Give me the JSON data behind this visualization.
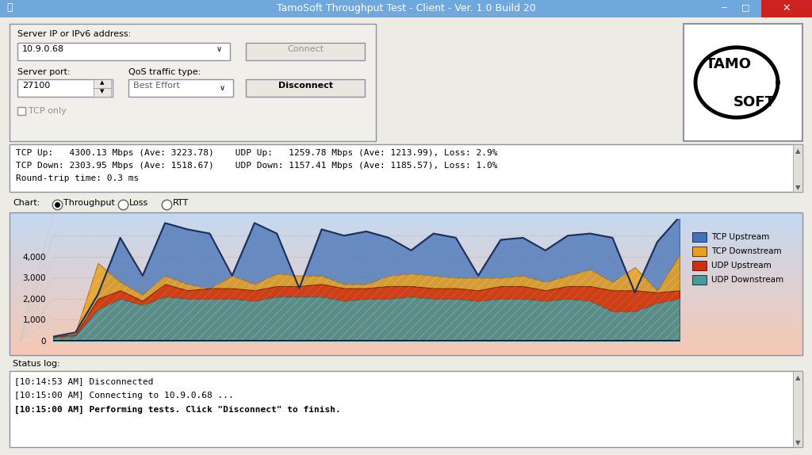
{
  "title": "TamoSoft Throughput Test - Client - Ver. 1.0 Build 20",
  "bg_outer": "#6fa8dc",
  "bg_inner": "#ecebe4",
  "white": "#ffffff",
  "border_color": "#a0a0a0",
  "titlebar_color": "#6fa8dc",
  "close_btn_color": "#cc2222",
  "server_ip": "10.9.0.68",
  "server_port": "27100",
  "qos": "Best Effort",
  "stats_line1": "TCP Up:   4300.13 Mbps (Ave: 3223.78)    UDP Up:   1259.78 Mbps (Ave: 1213.99), Loss: 2.9%",
  "stats_line2": "TCP Down: 2303.95 Mbps (Ave: 1518.67)    UDP Down: 1157.41 Mbps (Ave: 1185.57), Loss: 1.0%",
  "stats_line3": "Round-trip time: 0.3 ms",
  "status_lines": [
    "[10:14:53 AM] Disconnected",
    "[10:15:00 AM] Connecting to 10.9.0.68 ...",
    "[10:15:00 AM] Performing tests. Click \"Disconnect\" to finish."
  ],
  "chart_bg_top": "#c5d8f0",
  "chart_bg_bottom": "#f5c8b4",
  "tcp_upstream_color": "#4472b8",
  "tcp_downstream_color": "#e8a020",
  "udp_upstream_color": "#cc3010",
  "udp_downstream_color": "#4a9a9c",
  "tcp_up": [
    200,
    400,
    2200,
    4900,
    3100,
    5600,
    5300,
    5100,
    3100,
    5600,
    5100,
    2500,
    5300,
    5000,
    5200,
    4900,
    4300,
    5100,
    4900,
    3100,
    4800,
    4900,
    4300,
    5000,
    5100,
    4900,
    2300,
    4700,
    5900
  ],
  "tcp_down": [
    200,
    400,
    3700,
    2800,
    2200,
    3100,
    2700,
    2500,
    3100,
    2700,
    3200,
    3100,
    3100,
    2700,
    2700,
    3100,
    3200,
    3100,
    3000,
    3000,
    3000,
    3100,
    2800,
    3100,
    3400,
    2800,
    3500,
    2400,
    4100
  ],
  "udp_up": [
    200,
    300,
    2000,
    2400,
    1900,
    2700,
    2400,
    2500,
    2500,
    2400,
    2600,
    2600,
    2700,
    2500,
    2500,
    2600,
    2600,
    2500,
    2500,
    2400,
    2600,
    2600,
    2400,
    2600,
    2600,
    2400,
    2400,
    2300,
    2400
  ],
  "udp_down": [
    150,
    250,
    1500,
    2000,
    1700,
    2100,
    2000,
    2000,
    2000,
    1900,
    2100,
    2100,
    2100,
    1900,
    2000,
    2000,
    2100,
    2000,
    2000,
    1900,
    2000,
    2000,
    1900,
    2000,
    1900,
    1400,
    1400,
    1800,
    2000
  ],
  "legend_labels": [
    "TCP Upstream",
    "TCP Downstream",
    "UDP Upstream",
    "UDP Downstream"
  ]
}
